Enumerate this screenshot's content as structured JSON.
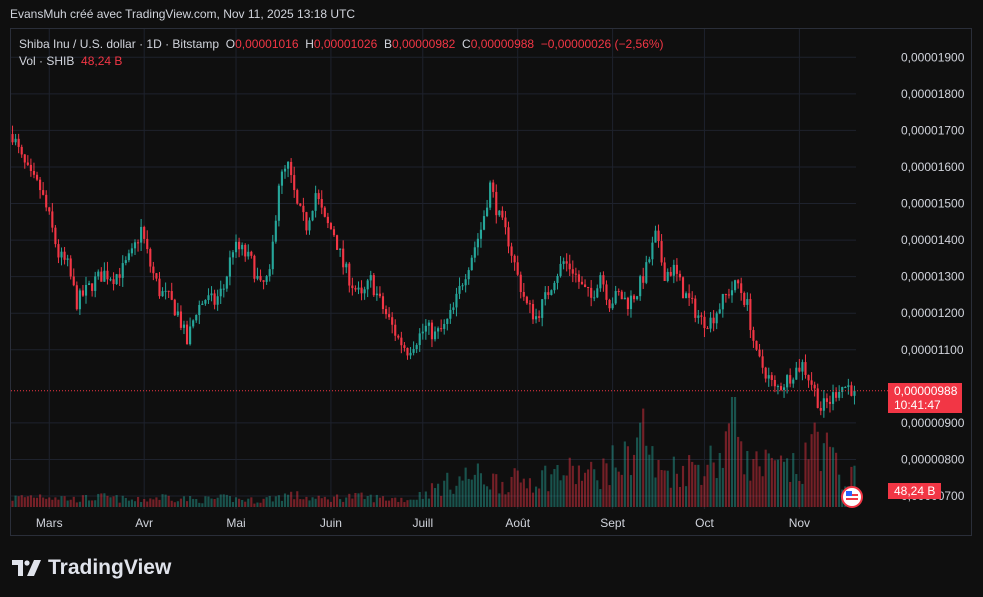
{
  "header": {
    "attribution": "EvansMuh créé avec TradingView.com, Nov 11, 2025 13:18 UTC"
  },
  "legend": {
    "symbol": "Shiba Inu / U.S. dollar · 1D · Bitstamp",
    "open_label": "O",
    "open_value": "0,00001016",
    "high_label": "H",
    "high_value": "0,00001026",
    "low_label": "B",
    "low_value": "0,00000982",
    "close_label": "C",
    "close_value": "0,00000988",
    "change": "−0,00000026 (−2,56%)",
    "volume_label": "Vol · SHIB",
    "volume_value": "48,24 B"
  },
  "price_tag": {
    "price": "0,00000988",
    "countdown": "10:41:47"
  },
  "volume_tag": "48,24 B",
  "footer": {
    "brand": "TradingView"
  },
  "colors": {
    "up": "#26a69a",
    "down": "#f23645",
    "background": "#0f0f0f",
    "grid": "#1e222d"
  },
  "chart_data": {
    "type": "candlestick",
    "ylim": [
      6.7e-06,
      1.95e-05
    ],
    "y_ticks": [
      "0,00001900",
      "0,00001800",
      "0,00001700",
      "0,00001600",
      "0,00001500",
      "0,00001400",
      "0,00001300",
      "0,00001200",
      "0,00001100",
      "0,00000900",
      "0,00000800",
      "0,00000700"
    ],
    "y_tick_values": [
      1.9e-05,
      1.8e-05,
      1.7e-05,
      1.6e-05,
      1.5e-05,
      1.4e-05,
      1.3e-05,
      1.2e-05,
      1.1e-05,
      9e-06,
      8e-06,
      7e-06
    ],
    "x_labels": [
      "Mars",
      "Avr",
      "Mai",
      "Juin",
      "Juill",
      "Août",
      "Sept",
      "Oct",
      "Nov"
    ],
    "x_label_day_index": [
      12,
      43,
      73,
      104,
      134,
      165,
      196,
      226,
      257
    ],
    "current_price": 9.88e-06,
    "close_path": [
      [
        0,
        16.9
      ],
      [
        3,
        16.2
      ],
      [
        6,
        15.7
      ],
      [
        9,
        15.4
      ],
      [
        12,
        14.6
      ],
      [
        15,
        13.6
      ],
      [
        18,
        13.3
      ],
      [
        21,
        12.3
      ],
      [
        24,
        12.6
      ],
      [
        27,
        12.9
      ],
      [
        30,
        13.1
      ],
      [
        33,
        13.0
      ],
      [
        36,
        13.2
      ],
      [
        39,
        13.6
      ],
      [
        42,
        14.3
      ],
      [
        45,
        13.3
      ],
      [
        48,
        12.6
      ],
      [
        51,
        12.4
      ],
      [
        54,
        12.0
      ],
      [
        57,
        11.2
      ],
      [
        60,
        12.1
      ],
      [
        63,
        12.4
      ],
      [
        66,
        12.3
      ],
      [
        69,
        12.7
      ],
      [
        72,
        13.8
      ],
      [
        75,
        13.7
      ],
      [
        78,
        13.4
      ],
      [
        81,
        12.7
      ],
      [
        84,
        13.0
      ],
      [
        87,
        15.6
      ],
      [
        90,
        16.0
      ],
      [
        93,
        14.9
      ],
      [
        96,
        14.4
      ],
      [
        99,
        15.3
      ],
      [
        102,
        14.5
      ],
      [
        105,
        14.2
      ],
      [
        108,
        13.3
      ],
      [
        111,
        12.8
      ],
      [
        114,
        12.4
      ],
      [
        117,
        12.9
      ],
      [
        120,
        12.3
      ],
      [
        123,
        11.8
      ],
      [
        126,
        11.3
      ],
      [
        129,
        11.0
      ],
      [
        132,
        11.3
      ],
      [
        135,
        11.6
      ],
      [
        138,
        11.4
      ],
      [
        141,
        11.6
      ],
      [
        144,
        12.1
      ],
      [
        147,
        12.9
      ],
      [
        150,
        13.6
      ],
      [
        153,
        14.3
      ],
      [
        156,
        15.5
      ],
      [
        159,
        14.6
      ],
      [
        162,
        14.0
      ],
      [
        165,
        13.0
      ],
      [
        168,
        12.2
      ],
      [
        171,
        11.9
      ],
      [
        174,
        12.4
      ],
      [
        177,
        13.0
      ],
      [
        180,
        13.4
      ],
      [
        183,
        13.2
      ],
      [
        186,
        12.7
      ],
      [
        189,
        12.4
      ],
      [
        192,
        13.1
      ],
      [
        195,
        12.3
      ],
      [
        198,
        12.5
      ],
      [
        201,
        12.3
      ],
      [
        204,
        12.6
      ],
      [
        207,
        13.2
      ],
      [
        210,
        14.1
      ],
      [
        213,
        13.1
      ],
      [
        216,
        13.2
      ],
      [
        219,
        12.6
      ],
      [
        222,
        12.2
      ],
      [
        225,
        11.8
      ],
      [
        228,
        11.8
      ],
      [
        231,
        12.2
      ],
      [
        234,
        12.6
      ],
      [
        237,
        12.8
      ],
      [
        240,
        12.2
      ],
      [
        243,
        10.8
      ],
      [
        246,
        10.4
      ],
      [
        249,
        9.9
      ],
      [
        252,
        10.1
      ],
      [
        255,
        10.4
      ],
      [
        258,
        10.6
      ],
      [
        261,
        10.1
      ],
      [
        264,
        9.4
      ],
      [
        267,
        9.6
      ],
      [
        270,
        10.0
      ],
      [
        273,
        10.0
      ],
      [
        275,
        9.88
      ]
    ],
    "volume_path": [
      [
        0,
        0.25
      ],
      [
        10,
        0.35
      ],
      [
        20,
        0.22
      ],
      [
        30,
        0.28
      ],
      [
        40,
        0.18
      ],
      [
        50,
        0.3
      ],
      [
        60,
        0.2
      ],
      [
        70,
        0.25
      ],
      [
        80,
        0.18
      ],
      [
        90,
        0.35
      ],
      [
        100,
        0.22
      ],
      [
        110,
        0.3
      ],
      [
        120,
        0.25
      ],
      [
        130,
        0.22
      ],
      [
        140,
        0.6
      ],
      [
        150,
        0.9
      ],
      [
        160,
        0.7
      ],
      [
        170,
        0.8
      ],
      [
        180,
        1.0
      ],
      [
        190,
        0.9
      ],
      [
        196,
        1.2
      ],
      [
        200,
        1.3
      ],
      [
        206,
        2.3
      ],
      [
        210,
        1.0
      ],
      [
        220,
        1.1
      ],
      [
        228,
        1.3
      ],
      [
        232,
        1.5
      ],
      [
        236,
        3.2
      ],
      [
        240,
        1.2
      ],
      [
        250,
        1.1
      ],
      [
        258,
        1.0
      ],
      [
        263,
        2.2
      ],
      [
        266,
        1.6
      ],
      [
        270,
        0.9
      ],
      [
        275,
        0.8
      ]
    ]
  }
}
